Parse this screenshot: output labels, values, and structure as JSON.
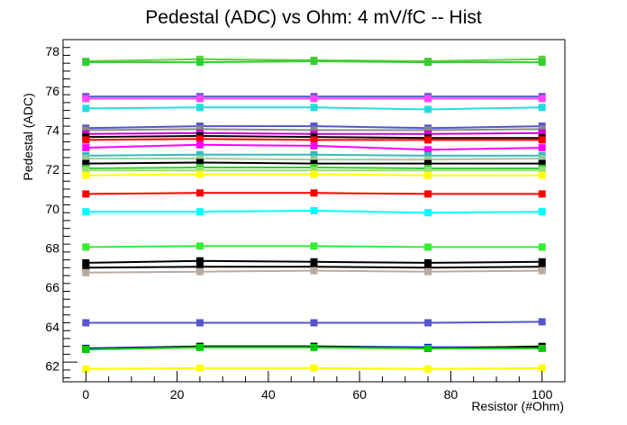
{
  "chart_data": {
    "type": "line",
    "title": "Pedestal (ADC) vs Ohm: 4 mV/fC -- Hist",
    "xlabel": "Resistor (#Ohm)",
    "ylabel": "Pedestal (ADC)",
    "xlim": [
      -5,
      105
    ],
    "ylim": [
      61.2,
      78.6
    ],
    "x": [
      0,
      25,
      50,
      75,
      100
    ],
    "x_ticks": [
      0,
      20,
      40,
      60,
      80,
      100
    ],
    "y_ticks": [
      62,
      64,
      66,
      68,
      70,
      72,
      74,
      76,
      78
    ],
    "grid": false,
    "legend": "none",
    "series": [
      {
        "color": "#66cc44",
        "values": [
          77.5,
          77.6,
          77.55,
          77.5,
          77.6
        ]
      },
      {
        "color": "#33cc33",
        "values": [
          77.45,
          77.45,
          77.5,
          77.45,
          77.45
        ]
      },
      {
        "color": "#5555cc",
        "values": [
          75.7,
          75.7,
          75.7,
          75.7,
          75.7
        ]
      },
      {
        "color": "#ff44ff",
        "values": [
          75.6,
          75.6,
          75.6,
          75.6,
          75.6
        ]
      },
      {
        "color": "#22dddd",
        "values": [
          75.1,
          75.15,
          75.15,
          75.05,
          75.15
        ]
      },
      {
        "color": "#5555cc",
        "values": [
          74.1,
          74.2,
          74.2,
          74.1,
          74.2
        ]
      },
      {
        "color": "#888888",
        "values": [
          74.0,
          74.05,
          74.0,
          74.0,
          74.05
        ]
      },
      {
        "color": "#cc00cc",
        "values": [
          73.8,
          73.85,
          73.8,
          73.8,
          73.85
        ]
      },
      {
        "color": "#000000",
        "values": [
          73.65,
          73.7,
          73.65,
          73.6,
          73.6
        ]
      },
      {
        "color": "#ff0000",
        "values": [
          73.5,
          73.55,
          73.5,
          73.5,
          73.5
        ]
      },
      {
        "color": "#ff00ff",
        "values": [
          73.1,
          73.25,
          73.2,
          73.0,
          73.1
        ]
      },
      {
        "color": "#33bbbb",
        "values": [
          72.7,
          72.75,
          72.75,
          72.7,
          72.7
        ]
      },
      {
        "color": "#99cc99",
        "values": [
          72.55,
          72.55,
          72.5,
          72.5,
          72.55
        ]
      },
      {
        "color": "#000000",
        "values": [
          72.3,
          72.35,
          72.3,
          72.3,
          72.3
        ]
      },
      {
        "color": "#33cc33",
        "values": [
          72.05,
          72.1,
          72.1,
          72.05,
          72.05
        ]
      },
      {
        "color": "#99dd77",
        "values": [
          71.95,
          71.95,
          71.95,
          71.95,
          71.95
        ]
      },
      {
        "color": "#ffff00",
        "values": [
          71.7,
          71.75,
          71.75,
          71.7,
          71.7
        ]
      },
      {
        "color": "#ff0000",
        "values": [
          70.75,
          70.8,
          70.8,
          70.75,
          70.75
        ]
      },
      {
        "color": "#00ffff",
        "values": [
          69.85,
          69.85,
          69.9,
          69.8,
          69.85
        ]
      },
      {
        "color": "#33ee33",
        "values": [
          68.05,
          68.1,
          68.1,
          68.05,
          68.05
        ]
      },
      {
        "color": "#000000",
        "values": [
          67.25,
          67.35,
          67.3,
          67.25,
          67.3
        ]
      },
      {
        "color": "#000000",
        "values": [
          67.0,
          67.05,
          67.05,
          67.0,
          67.05
        ]
      },
      {
        "color": "#bbaaa0",
        "values": [
          66.75,
          66.8,
          66.85,
          66.8,
          66.85
        ]
      },
      {
        "color": "#5555cc",
        "values": [
          64.2,
          64.2,
          64.2,
          64.2,
          64.25
        ]
      },
      {
        "color": "#0000ff",
        "values": [
          62.9,
          63.0,
          63.0,
          62.95,
          62.95
        ]
      },
      {
        "color": "#000000",
        "values": [
          62.85,
          63.0,
          63.0,
          62.9,
          63.0
        ]
      },
      {
        "color": "#00cc00",
        "values": [
          62.85,
          62.95,
          62.95,
          62.9,
          62.9
        ]
      },
      {
        "color": "#ffff00",
        "values": [
          61.85,
          61.9,
          61.9,
          61.85,
          61.9
        ]
      }
    ]
  }
}
